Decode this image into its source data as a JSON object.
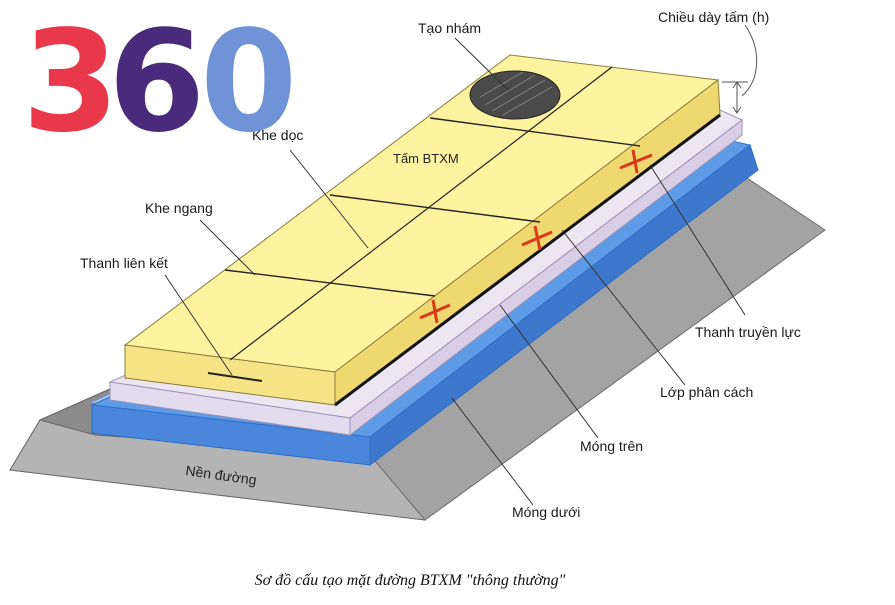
{
  "logo": {
    "text": "360",
    "colors": [
      "#e8384a",
      "#4a2a7a",
      "#6f93d6"
    ]
  },
  "labels": {
    "tao_nham": "Tạo nhám",
    "chieu_day": "Chiều dày tấm (h)",
    "khe_doc": "Khe dọc",
    "tam_btxm": "Tấm BTXM",
    "khe_ngang": "Khe ngang",
    "thanh_lien_ket": "Thanh liên kết",
    "thanh_truyen_luc": "Thanh truyền lực",
    "lop_phan_cach": "Lớp phân cách",
    "mong_tren": "Móng trên",
    "mong_duoi": "Móng dưới",
    "nen_duong": "Nền đường"
  },
  "caption": "Sơ đồ cấu tạo mặt đường BTXM \"thông thường\"",
  "colors": {
    "slab_top": "#fff3a0",
    "slab_side": "#f3df7a",
    "separator": "#e6dfee",
    "upper_base": "#4f8fe0",
    "lower_base_top": "#8fb7ef",
    "subgrade": "#9a9a9a",
    "dowel": "#d83a1a"
  }
}
